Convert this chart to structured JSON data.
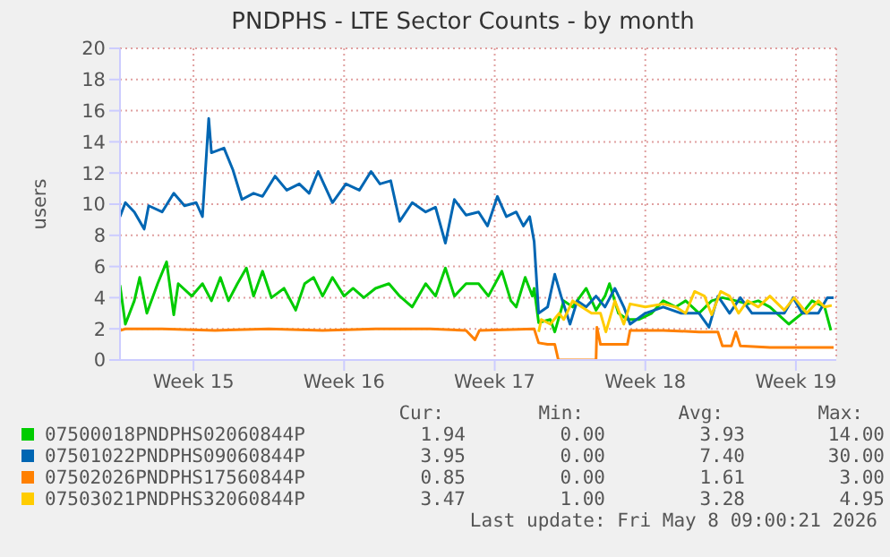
{
  "chart_data": {
    "type": "line",
    "title": "PNDPHS - LTE Sector Counts - by month",
    "ylabel": "users",
    "xlim": [
      "2026-04-06T02:00",
      "2026-05-09T09:00"
    ],
    "xticks": [
      {
        "value": "2026-04-09T12:00",
        "label": "Week 15"
      },
      {
        "value": "2026-04-16T12:00",
        "label": "Week 16"
      },
      {
        "value": "2026-04-23T12:00",
        "label": "Week 17"
      },
      {
        "value": "2026-04-30T12:00",
        "label": "Week 18"
      },
      {
        "value": "2026-05-07T12:00",
        "label": "Week 19"
      }
    ],
    "ylim": [
      0,
      20
    ],
    "yticks": [
      0,
      2,
      4,
      6,
      8,
      10,
      12,
      14,
      16,
      18,
      20
    ],
    "grid": true,
    "legend": "bottom",
    "marker": "none",
    "line_style": "solid",
    "series": [
      {
        "name": "07500018PNDPHS02060844P",
        "color": "#00cc00",
        "x": [
          "2026-04-06T02:00",
          "2026-04-06T08:00",
          "2026-04-06T18:00",
          "2026-04-07T00:00",
          "2026-04-07T08:00",
          "2026-04-07T20:00",
          "2026-04-08T06:00",
          "2026-04-08T14:00",
          "2026-04-08T19:00",
          "2026-04-09T10:00",
          "2026-04-09T22:00",
          "2026-04-10T08:00",
          "2026-04-10T18:00",
          "2026-04-11T03:00",
          "2026-04-11T13:00",
          "2026-04-11T23:00",
          "2026-04-12T07:00",
          "2026-04-12T17:00",
          "2026-04-13T03:00",
          "2026-04-13T17:00",
          "2026-04-14T06:00",
          "2026-04-14T16:00",
          "2026-04-15T02:00",
          "2026-04-15T12:00",
          "2026-04-15T23:00",
          "2026-04-16T12:00",
          "2026-04-16T22:00",
          "2026-04-17T10:00",
          "2026-04-17T23:00",
          "2026-04-18T14:00",
          "2026-04-19T02:00",
          "2026-04-19T16:00",
          "2026-04-20T07:00",
          "2026-04-20T18:00",
          "2026-04-21T05:00",
          "2026-04-21T15:00",
          "2026-04-22T04:00",
          "2026-04-22T18:00",
          "2026-04-23T05:00",
          "2026-04-23T20:00",
          "2026-04-24T06:00",
          "2026-04-24T12:00",
          "2026-04-24T22:00",
          "2026-04-25T06:00",
          "2026-04-25T08:00",
          "2026-04-25T13:00",
          "2026-04-26T02:00",
          "2026-04-26T07:00",
          "2026-04-26T17:00",
          "2026-04-27T03:00",
          "2026-04-27T18:00",
          "2026-04-28T05:00",
          "2026-04-28T15:00",
          "2026-04-28T20:00",
          "2026-04-29T06:00",
          "2026-04-29T16:00",
          "2026-04-30T05:00",
          "2026-04-30T19:00",
          "2026-05-01T08:00",
          "2026-05-01T22:00",
          "2026-05-02T09:00",
          "2026-05-03T00:00",
          "2026-05-03T14:00",
          "2026-05-04T02:00",
          "2026-05-04T17:00",
          "2026-05-05T06:00",
          "2026-05-05T18:00",
          "2026-05-06T07:00",
          "2026-05-07T04:00",
          "2026-05-07T19:00",
          "2026-05-08T06:00",
          "2026-05-08T20:00",
          "2026-05-09T03:00"
        ],
        "values": [
          4.8,
          2.3,
          3.8,
          5.3,
          3.0,
          4.9,
          6.3,
          2.9,
          4.9,
          4.1,
          4.9,
          3.8,
          5.3,
          3.8,
          4.9,
          5.9,
          4.1,
          5.7,
          4.0,
          4.6,
          3.2,
          4.9,
          5.3,
          4.1,
          5.3,
          4.1,
          4.6,
          4.0,
          4.6,
          4.9,
          4.1,
          3.4,
          4.9,
          4.1,
          5.9,
          4.1,
          4.9,
          4.9,
          4.1,
          5.7,
          3.8,
          3.4,
          5.3,
          4.1,
          4.6,
          2.4,
          2.6,
          1.8,
          3.8,
          3.4,
          4.6,
          3.2,
          4.1,
          4.9,
          3.0,
          2.6,
          2.6,
          3.0,
          3.8,
          3.4,
          3.8,
          3.0,
          3.8,
          4.0,
          3.8,
          3.6,
          3.8,
          3.4,
          2.3,
          3.0,
          3.8,
          3.4,
          1.9
        ]
      },
      {
        "name": "07501022PNDPHS09060844P",
        "color": "#0066b3",
        "x": [
          "2026-04-06T02:00",
          "2026-04-06T08:00",
          "2026-04-06T18:00",
          "2026-04-07T05:00",
          "2026-04-07T10:00",
          "2026-04-08T01:00",
          "2026-04-08T14:00",
          "2026-04-09T02:00",
          "2026-04-09T15:00",
          "2026-04-09T22:00",
          "2026-04-10T05:00",
          "2026-04-10T08:00",
          "2026-04-10T22:00",
          "2026-04-11T08:00",
          "2026-04-11T18:00",
          "2026-04-12T07:00",
          "2026-04-12T17:00",
          "2026-04-13T07:00",
          "2026-04-13T20:00",
          "2026-04-14T10:00",
          "2026-04-14T21:00",
          "2026-04-15T07:00",
          "2026-04-15T23:00",
          "2026-04-16T14:00",
          "2026-04-17T05:00",
          "2026-04-17T18:00",
          "2026-04-18T04:00",
          "2026-04-18T16:00",
          "2026-04-19T02:00",
          "2026-04-19T16:00",
          "2026-04-20T07:00",
          "2026-04-20T18:00",
          "2026-04-21T05:00",
          "2026-04-21T15:00",
          "2026-04-22T04:00",
          "2026-04-22T18:00",
          "2026-04-23T04:00",
          "2026-04-23T15:00",
          "2026-04-24T01:00",
          "2026-04-24T12:00",
          "2026-04-24T20:00",
          "2026-04-25T03:00",
          "2026-04-25T08:00",
          "2026-04-25T13:00",
          "2026-04-25T23:00",
          "2026-04-26T07:00",
          "2026-04-26T14:00",
          "2026-04-27T00:00",
          "2026-04-27T08:00",
          "2026-04-27T18:00",
          "2026-04-28T05:00",
          "2026-04-28T15:00",
          "2026-04-29T02:00",
          "2026-04-29T12:00",
          "2026-04-29T19:00",
          "2026-04-30T12:00",
          "2026-05-01T08:00",
          "2026-05-02T04:00",
          "2026-05-03T00:00",
          "2026-05-03T11:00",
          "2026-05-03T21:00",
          "2026-05-04T10:00",
          "2026-05-04T22:00",
          "2026-05-05T11:00",
          "2026-05-06T02:00",
          "2026-05-06T23:00",
          "2026-05-07T09:00",
          "2026-05-07T19:00",
          "2026-05-08T13:00",
          "2026-05-08T23:00",
          "2026-05-09T06:00"
        ],
        "values": [
          9.2,
          10.1,
          9.5,
          8.4,
          9.9,
          9.5,
          10.7,
          9.9,
          10.1,
          9.2,
          15.5,
          13.3,
          13.6,
          12.2,
          10.3,
          10.7,
          10.5,
          11.8,
          10.9,
          11.3,
          10.7,
          12.1,
          10.1,
          11.3,
          10.9,
          12.1,
          11.3,
          11.5,
          8.9,
          10.1,
          9.5,
          9.8,
          7.5,
          10.3,
          9.3,
          9.5,
          8.6,
          10.5,
          9.2,
          9.5,
          8.6,
          9.2,
          7.6,
          3.0,
          3.4,
          5.5,
          4.1,
          2.3,
          3.8,
          3.4,
          4.1,
          3.4,
          4.6,
          3.4,
          2.3,
          3.0,
          3.4,
          3.0,
          3.0,
          2.1,
          4.1,
          3.0,
          4.0,
          3.0,
          3.0,
          3.0,
          4.0,
          3.0,
          3.0,
          4.0,
          4.0
        ]
      },
      {
        "name": "07502026PNDPHS17560844P",
        "color": "#ff8000",
        "x": [
          "2026-04-06T02:00",
          "2026-04-06T08:00",
          "2026-04-08T01:00",
          "2026-04-10T12:00",
          "2026-04-13T00:00",
          "2026-04-15T12:00",
          "2026-04-17T23:00",
          "2026-04-20T12:00",
          "2026-04-22T04:00",
          "2026-04-22T14:00",
          "2026-04-22T19:00",
          "2026-04-25T08:00",
          "2026-04-25T13:00",
          "2026-04-25T23:00",
          "2026-04-26T07:00",
          "2026-04-26T11:00",
          "2026-04-28T05:00",
          "2026-04-28T06:00",
          "2026-04-28T10:00",
          "2026-04-29T16:00",
          "2026-04-29T19:00",
          "2026-05-01T08:00",
          "2026-05-03T00:00",
          "2026-05-03T21:00",
          "2026-05-04T02:00",
          "2026-05-04T12:00",
          "2026-05-04T17:00",
          "2026-05-04T22:00",
          "2026-05-06T07:00",
          "2026-05-08T00:00",
          "2026-05-09T06:00"
        ],
        "values": [
          1.9,
          2.0,
          2.0,
          1.9,
          2.0,
          1.9,
          2.0,
          2.0,
          1.9,
          1.3,
          1.9,
          2.0,
          1.1,
          1.0,
          1.0,
          0,
          0,
          2.1,
          1.0,
          1.0,
          1.9,
          1.9,
          1.8,
          1.8,
          0.9,
          0.9,
          1.8,
          0.9,
          0.8,
          0.8,
          0.8
        ]
      },
      {
        "name": "07503021PNDPHS32060844P",
        "color": "#ffcc00",
        "x": [
          "2026-04-25T13:00",
          "2026-04-25T16:00",
          "2026-04-26T02:00",
          "2026-04-26T12:00",
          "2026-04-26T17:00",
          "2026-04-27T03:00",
          "2026-04-27T13:00",
          "2026-04-28T00:00",
          "2026-04-28T10:00",
          "2026-04-28T16:00",
          "2026-04-29T02:00",
          "2026-04-29T12:00",
          "2026-04-29T19:00",
          "2026-04-30T12:00",
          "2026-05-01T08:00",
          "2026-05-01T22:00",
          "2026-05-02T09:00",
          "2026-05-02T19:00",
          "2026-05-03T06:00",
          "2026-05-03T14:00",
          "2026-05-04T00:00",
          "2026-05-04T10:00",
          "2026-05-04T20:00",
          "2026-05-05T06:00",
          "2026-05-05T18:00",
          "2026-05-06T07:00",
          "2026-05-06T23:00",
          "2026-05-07T10:00",
          "2026-05-08T00:00",
          "2026-05-08T13:00",
          "2026-05-08T20:00",
          "2026-05-09T04:00"
        ],
        "values": [
          1.8,
          2.6,
          2.3,
          3.0,
          2.6,
          3.8,
          3.4,
          3.0,
          3.0,
          1.8,
          3.8,
          2.3,
          3.6,
          3.4,
          3.6,
          3.4,
          3.0,
          4.4,
          4.1,
          2.9,
          4.4,
          4.1,
          3.0,
          3.8,
          3.4,
          4.1,
          3.2,
          4.0,
          3.0,
          3.8,
          3.4,
          3.5
        ]
      }
    ],
    "annotations": [
      "Cur:",
      "Min:",
      "Avg:",
      "Max:",
      "1.94",
      "0.00",
      "3.93",
      "14.00",
      "3.95",
      "0.00",
      "7.40",
      "30.00",
      "0.85",
      "0.00",
      "1.61",
      "3.00",
      "3.47",
      "1.00",
      "3.28",
      "4.95",
      "Last update: Fri May  8 09:00:21 2026"
    ]
  }
}
